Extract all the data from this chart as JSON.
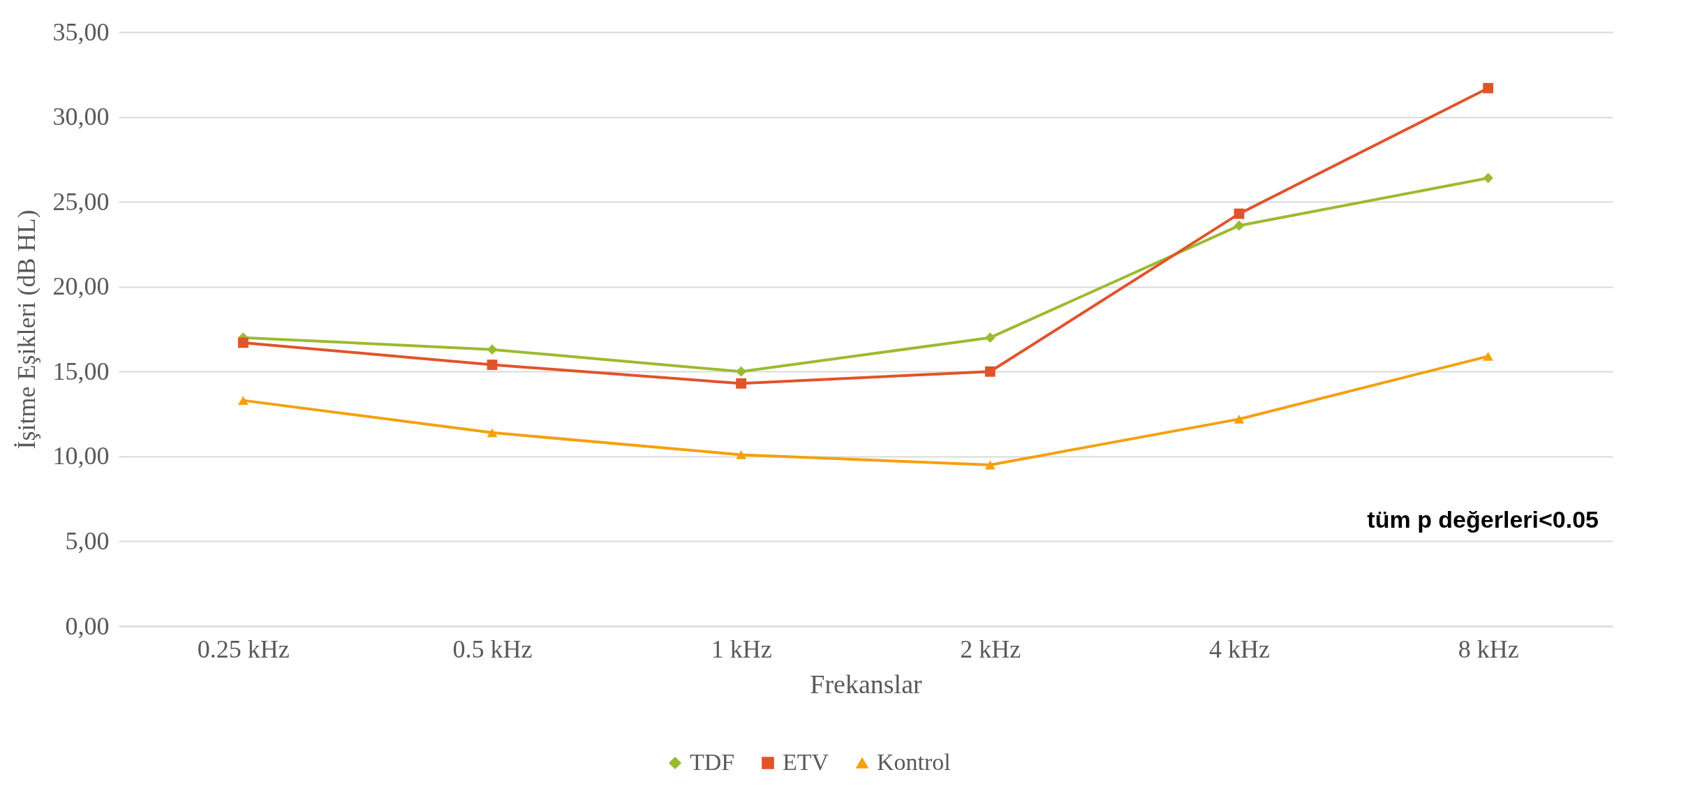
{
  "chart_data": {
    "type": "line",
    "ylabel": "İşitme Eşikleri (dB HL)",
    "xlabel": "Frekanslar",
    "categories": [
      "0.25 kHz",
      "0.5 kHz",
      "1 kHz",
      "2 kHz",
      "4 kHz",
      "8 kHz"
    ],
    "series": [
      {
        "name": "TDF",
        "color": "#9bbb2f",
        "marker": "diamond",
        "values": [
          17.0,
          16.3,
          15.0,
          17.0,
          23.6,
          26.4
        ]
      },
      {
        "name": "ETV",
        "color": "#e2532a",
        "marker": "square",
        "values": [
          16.7,
          15.4,
          14.3,
          15.0,
          24.3,
          31.7
        ]
      },
      {
        "name": "Kontrol",
        "color": "#f5a00f",
        "marker": "triangle",
        "values": [
          13.3,
          11.4,
          10.1,
          9.5,
          12.2,
          15.9
        ]
      }
    ],
    "ylim": [
      0,
      35
    ],
    "yticks": [
      {
        "value": 0,
        "label": "0,00"
      },
      {
        "value": 5,
        "label": "5,00"
      },
      {
        "value": 10,
        "label": "10,00"
      },
      {
        "value": 15,
        "label": "15,00"
      },
      {
        "value": 20,
        "label": "20,00"
      },
      {
        "value": 25,
        "label": "25,00"
      },
      {
        "value": 30,
        "label": "30,00"
      },
      {
        "value": 35,
        "label": "35,00"
      }
    ],
    "grid": "y",
    "legend": "bottom",
    "line_style": "solid",
    "annotations": [
      "tüm p değerleri<0.05"
    ]
  }
}
